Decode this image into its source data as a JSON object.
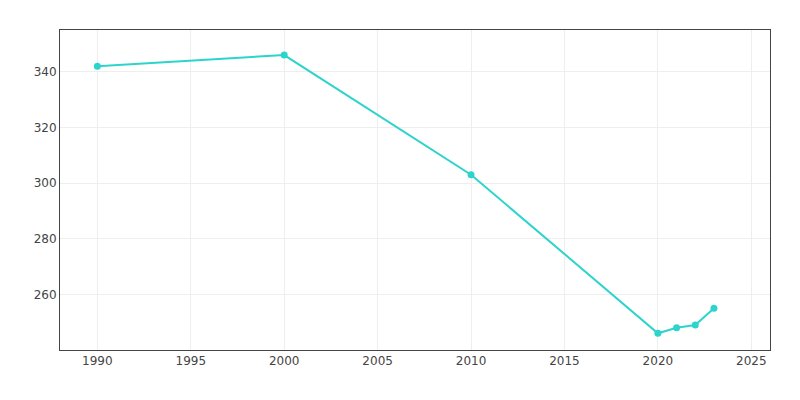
{
  "chart_data": {
    "type": "line",
    "x": [
      1990,
      2000,
      2010,
      2020,
      2021,
      2022,
      2023
    ],
    "values": [
      342,
      346,
      303,
      246,
      248,
      249,
      255
    ],
    "color": "#2dd4cc",
    "marker": "circle",
    "xlim": [
      1988,
      2026
    ],
    "ylim": [
      240,
      355
    ],
    "xticks": [
      1990,
      1995,
      2000,
      2005,
      2010,
      2015,
      2020,
      2025
    ],
    "yticks": [
      260,
      280,
      300,
      320,
      340
    ],
    "grid": true
  }
}
